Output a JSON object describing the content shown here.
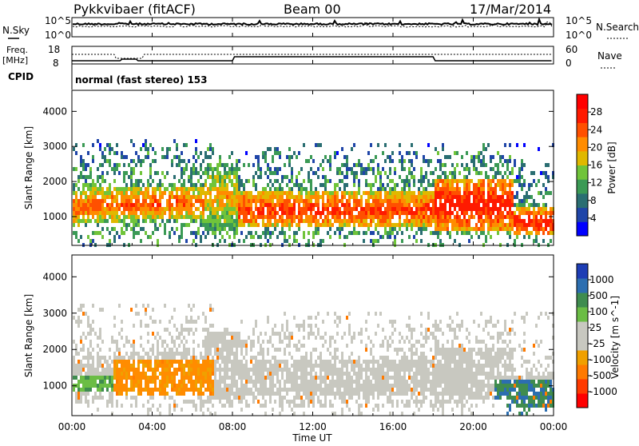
{
  "header": {
    "title": "Pykkvibaer (fitACF)",
    "beam": "Beam 00",
    "date": "17/Mar/2014"
  },
  "panels": {
    "nsky": {
      "left_label": "N.Sky",
      "right_label": "N.Search",
      "ticks_left": [
        "10^5",
        "10^0"
      ],
      "ticks_right": [
        "10^5",
        "10^0"
      ]
    },
    "freq": {
      "left_label_1": "Freq.",
      "left_label_2": "[MHz]",
      "right_label": "Nave",
      "ticks_left": [
        "18",
        "8"
      ],
      "ticks_right": [
        "60",
        "0"
      ]
    },
    "cpid": {
      "label": "CPID",
      "text": "normal (fast stereo) 153"
    }
  },
  "chart_data": [
    {
      "type": "heatmap",
      "name": "Power",
      "ylabel": "Slant Range [km]",
      "yticks": [
        1000,
        2000,
        3000,
        4000
      ],
      "ylim": [
        180,
        4600
      ],
      "xlabel": "Time UT",
      "xticks": [
        "00:00",
        "04:00",
        "08:00",
        "12:00",
        "16:00",
        "20:00",
        "00:00"
      ],
      "colorbar": {
        "label": "Power [dB]",
        "ticks": [
          "4",
          "8",
          "12",
          "16",
          "20",
          "24",
          "28"
        ],
        "colors": [
          "#0000ff",
          "#1f45a8",
          "#2a6e72",
          "#3b9a55",
          "#70c43a",
          "#e0b800",
          "#ff8c00",
          "#ff5000",
          "#ff1a00",
          "#ff0000"
        ]
      }
    },
    {
      "type": "heatmap",
      "name": "Velocity",
      "ylabel": "Slant Range [km]",
      "yticks": [
        1000,
        2000,
        3000,
        4000
      ],
      "ylim": [
        180,
        4600
      ],
      "xlabel": "Time UT",
      "xticks": [
        "00:00",
        "04:00",
        "08:00",
        "12:00",
        "16:00",
        "20:00",
        "00:00"
      ],
      "colorbar": {
        "label": "Velocity [m s^-1]",
        "ticks": [
          "1000",
          "500",
          "100",
          "25",
          "-25",
          "-100",
          "-500",
          "-1000"
        ],
        "colors": [
          "#1d3db5",
          "#2c6eb0",
          "#3f8c4f",
          "#6bbd45",
          "#c8c8c0",
          "#c8c8c0",
          "#f0a000",
          "#ff7a00",
          "#ff3a00",
          "#ff0000"
        ]
      }
    }
  ],
  "time_axis": {
    "label": "Time UT",
    "ticks": [
      "00:00",
      "04:00",
      "08:00",
      "12:00",
      "16:00",
      "20:00",
      "00:00"
    ]
  }
}
